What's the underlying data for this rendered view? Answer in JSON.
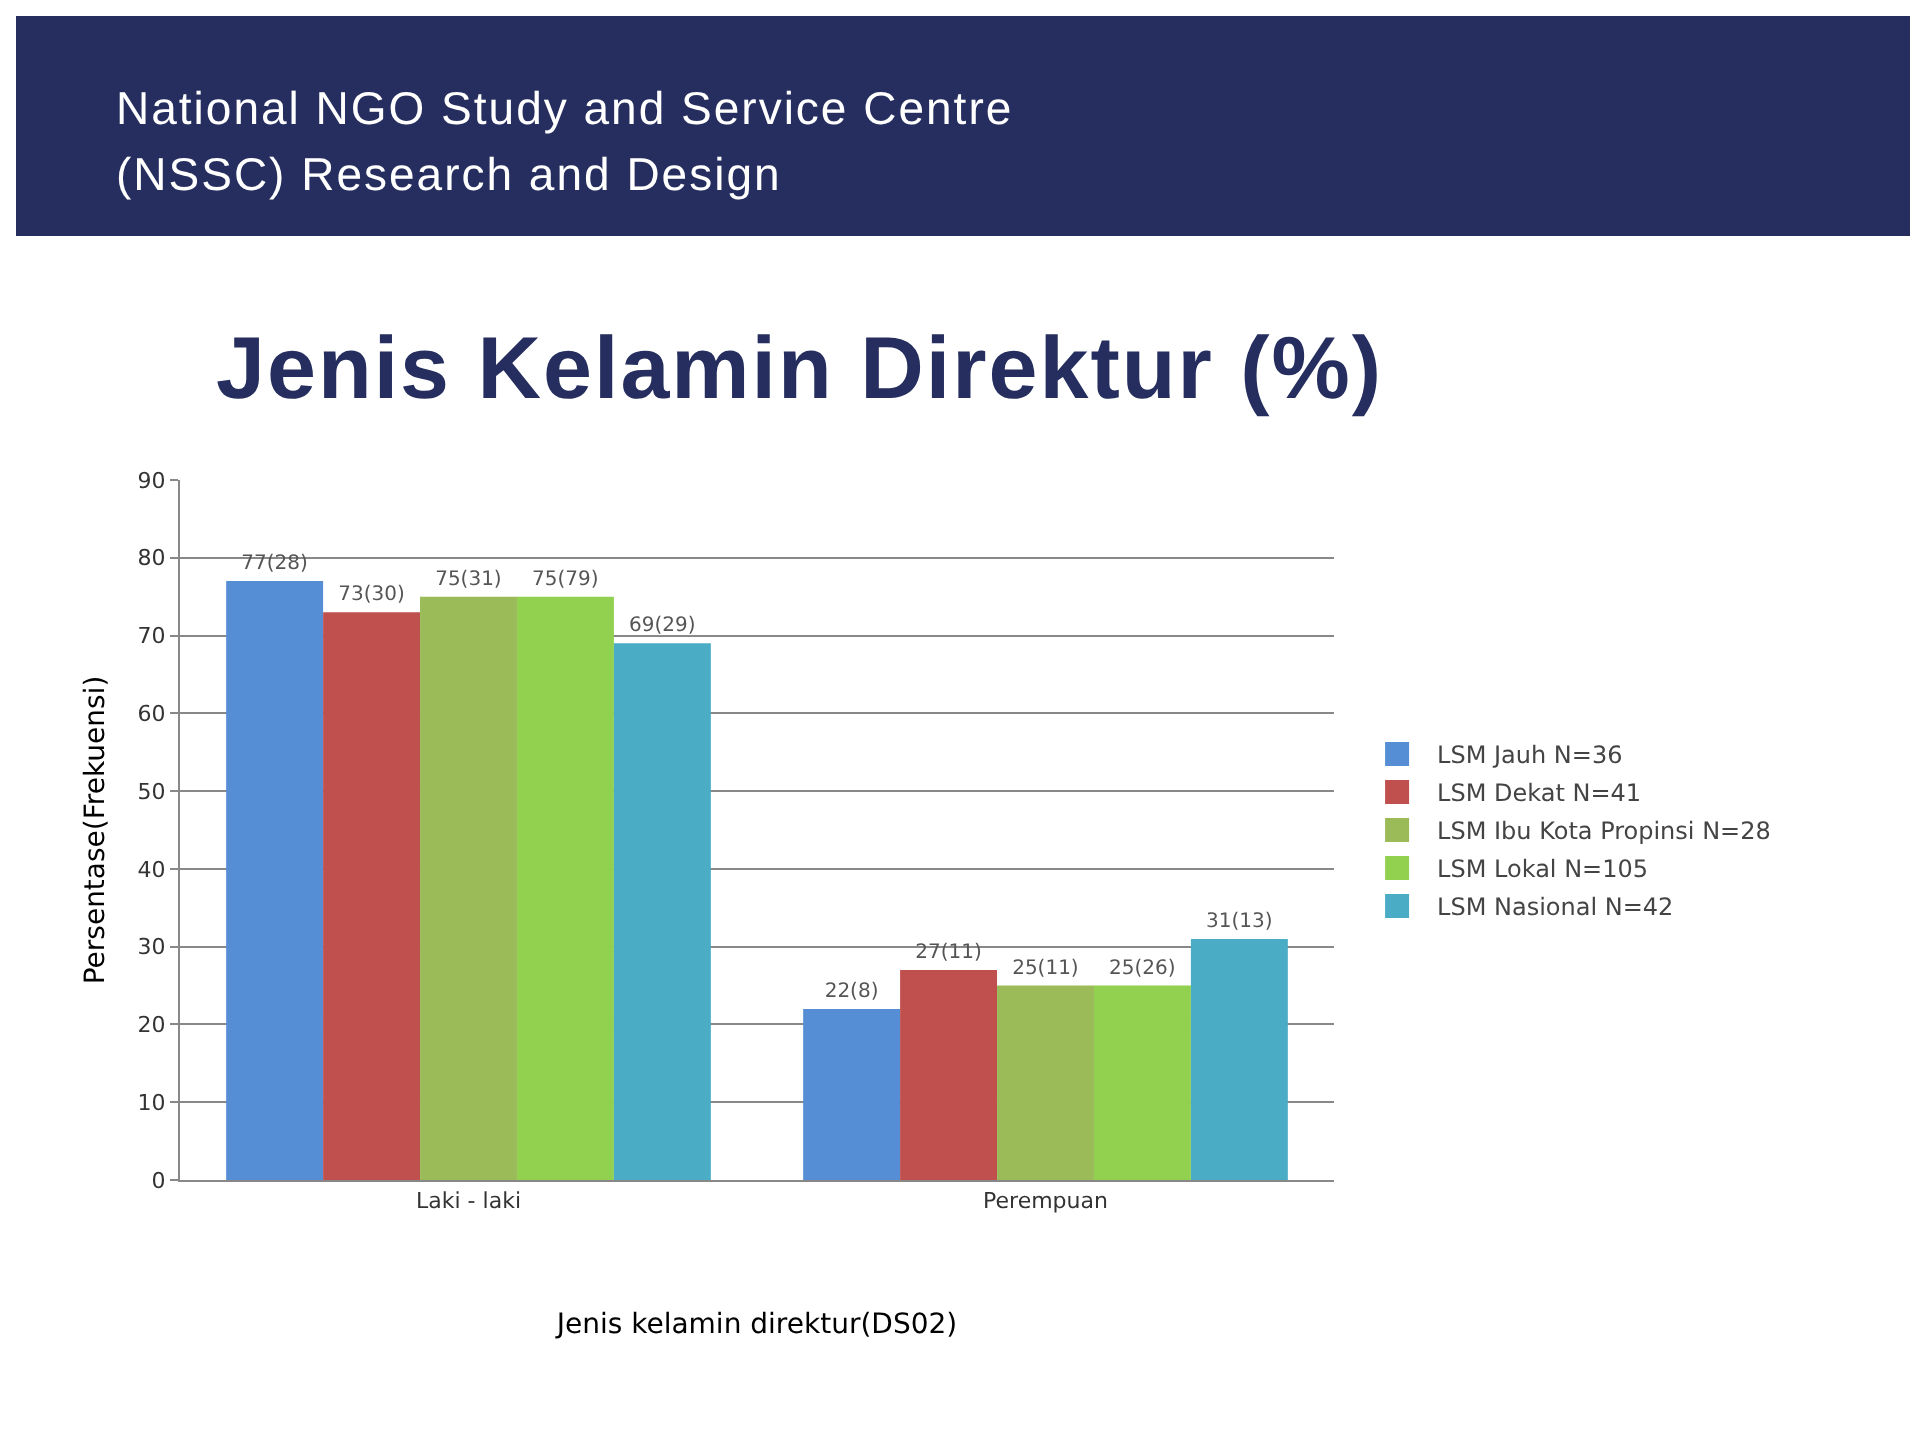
{
  "chart_data": {
    "type": "bar",
    "title": "Jenis Kelamin Direktur (%)",
    "annotations": [
      "National NGO Study and Service Centre (NSSC) Research and Design"
    ],
    "xlabel": "Jenis kelamin direktur(DS02)",
    "ylabel": "Persentase(Frekuensi)",
    "categories": [
      "Laki - laki",
      "Perempuan"
    ],
    "series": [
      {
        "name": "LSM Jauh N=36",
        "color": "#558ed5",
        "values": [
          77,
          22
        ],
        "value_labels": [
          "77(28)",
          "22(8)"
        ]
      },
      {
        "name": "LSM Dekat N=41",
        "color": "#c0504d",
        "values": [
          73,
          27
        ],
        "value_labels": [
          "73(30)",
          "27(11)"
        ]
      },
      {
        "name": "LSM Ibu Kota Propinsi N=28",
        "color": "#9bbb59",
        "values": [
          75,
          25
        ],
        "value_labels": [
          "75(31)",
          "25(11)"
        ]
      },
      {
        "name": "LSM Lokal N=105",
        "color": "#92d050",
        "values": [
          75,
          25
        ],
        "value_labels": [
          "75(79)",
          "25(26)"
        ]
      },
      {
        "name": "LSM Nasional N=42",
        "color": "#4bacc6",
        "values": [
          69,
          31
        ],
        "value_labels": [
          "69(29)",
          "31(13)"
        ]
      }
    ],
    "ylim": [
      0,
      90
    ],
    "yticks": [
      0,
      10,
      20,
      30,
      40,
      50,
      60,
      70,
      80,
      90
    ],
    "grid": "y",
    "legend": "right"
  }
}
